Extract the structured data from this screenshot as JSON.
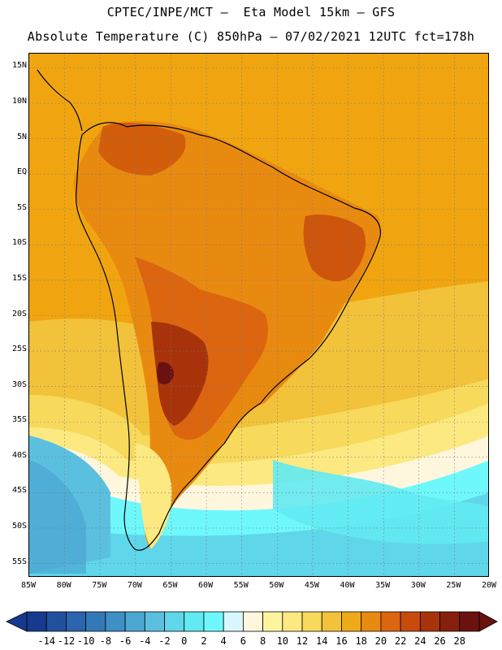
{
  "title": {
    "line1": "CPTEC/INPE/MCT –  Eta Model 15km – GFS",
    "line2": "Absolute Temperature (C) 850hPa – 07/02/2021 12UTC fct=178h"
  },
  "map": {
    "lat_labels": [
      "15N",
      "10N",
      "5N",
      "EQ",
      "5S",
      "10S",
      "15S",
      "20S",
      "25S",
      "30S",
      "35S",
      "40S",
      "45S",
      "50S",
      "55S"
    ],
    "lon_labels": [
      "85W",
      "80W",
      "75W",
      "70W",
      "65W",
      "60W",
      "55W",
      "50W",
      "45W",
      "40W",
      "35W",
      "30W",
      "25W",
      "20W"
    ],
    "lon_range": [
      -85,
      -20
    ],
    "lat_range": [
      17,
      -57
    ]
  },
  "colorbar": {
    "labels": [
      "-14",
      "-12",
      "-10",
      "-8",
      "-6",
      "-4",
      "-2",
      "0",
      "2",
      "4",
      "6",
      "8",
      "10",
      "12",
      "14",
      "16",
      "18",
      "20",
      "22",
      "24",
      "26",
      "28"
    ],
    "colors": [
      "#173a8e",
      "#21509e",
      "#2a65ad",
      "#3479b7",
      "#3e8fc4",
      "#4ba7d2",
      "#5bc0e0",
      "#5fd6ea",
      "#62eaf2",
      "#6ff8fb",
      "#d6f7fb",
      "#fff6de",
      "#fdf59d",
      "#fce982",
      "#f7d95c",
      "#f2c23a",
      "#eeaa18",
      "#e98a10",
      "#dc6510",
      "#c84b0c",
      "#a8330b",
      "#861f0c",
      "#6a1210"
    ]
  },
  "colors": {
    "warm_land": "#c85a12",
    "hot_core": "#8a2a0e",
    "ocean_tropical": "#f0a510",
    "cold": "#5fd6ea"
  }
}
